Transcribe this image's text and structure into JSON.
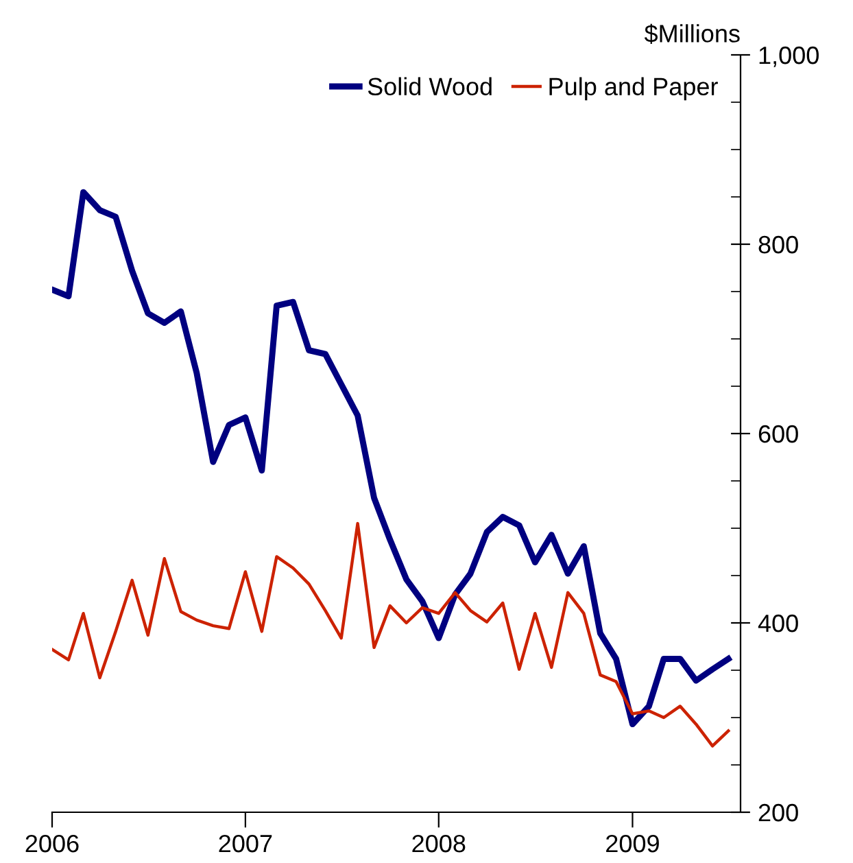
{
  "chart_data": {
    "type": "line",
    "ylabel": "$Millions",
    "x": [
      "2006-01",
      "2006-02",
      "2006-03",
      "2006-04",
      "2006-05",
      "2006-06",
      "2006-07",
      "2006-08",
      "2006-09",
      "2006-10",
      "2006-11",
      "2006-12",
      "2007-01",
      "2007-02",
      "2007-03",
      "2007-04",
      "2007-05",
      "2007-06",
      "2007-07",
      "2007-08",
      "2007-09",
      "2007-10",
      "2007-11",
      "2007-12",
      "2008-01",
      "2008-02",
      "2008-03",
      "2008-04",
      "2008-05",
      "2008-06",
      "2008-07",
      "2008-08",
      "2008-09",
      "2008-10",
      "2008-11",
      "2008-12",
      "2009-01",
      "2009-02",
      "2009-03",
      "2009-04",
      "2009-05",
      "2009-06",
      "2009-07"
    ],
    "series": [
      {
        "name": "Solid Wood",
        "color": "#000080",
        "values": [
          752,
          745,
          855,
          836,
          829,
          772,
          727,
          717,
          729,
          664,
          570,
          609,
          617,
          561,
          735,
          739,
          688,
          684,
          652,
          619,
          532,
          488,
          446,
          423,
          384,
          430,
          452,
          496,
          512,
          503,
          464,
          493,
          452,
          481,
          389,
          362,
          293,
          312,
          362,
          362,
          339,
          351,
          362
        ]
      },
      {
        "name": "Pulp and Paper",
        "color": "#cc2200",
        "values": [
          372,
          361,
          410,
          342,
          391,
          445,
          387,
          468,
          412,
          403,
          397,
          394,
          454,
          391,
          470,
          458,
          441,
          413,
          384,
          505,
          374,
          418,
          400,
          416,
          410,
          432,
          413,
          401,
          421,
          351,
          410,
          353,
          432,
          410,
          345,
          338,
          304,
          307,
          300,
          312,
          293,
          270,
          286
        ]
      }
    ],
    "xlim": [
      "2006-01-01",
      "2009-07-24"
    ],
    "xticks": [
      {
        "value": "2006-01-01",
        "label": "2006"
      },
      {
        "value": "2007-01-01",
        "label": "2007"
      },
      {
        "value": "2008-01-01",
        "label": "2008"
      },
      {
        "value": "2009-01-01",
        "label": "2009"
      }
    ],
    "ylim": [
      200,
      1000
    ],
    "yticks": [
      {
        "value": 200,
        "label": "200"
      },
      {
        "value": 250,
        "label": null
      },
      {
        "value": 300,
        "label": null
      },
      {
        "value": 350,
        "label": null
      },
      {
        "value": 400,
        "label": "400"
      },
      {
        "value": 450,
        "label": null
      },
      {
        "value": 500,
        "label": null
      },
      {
        "value": 550,
        "label": null
      },
      {
        "value": 600,
        "label": "600"
      },
      {
        "value": 650,
        "label": null
      },
      {
        "value": 700,
        "label": null
      },
      {
        "value": 750,
        "label": null
      },
      {
        "value": 800,
        "label": "800"
      },
      {
        "value": 850,
        "label": null
      },
      {
        "value": 900,
        "label": null
      },
      {
        "value": 950,
        "label": null
      },
      {
        "value": 1000,
        "label": "1,000"
      }
    ],
    "grid": false,
    "legend": "top right"
  }
}
